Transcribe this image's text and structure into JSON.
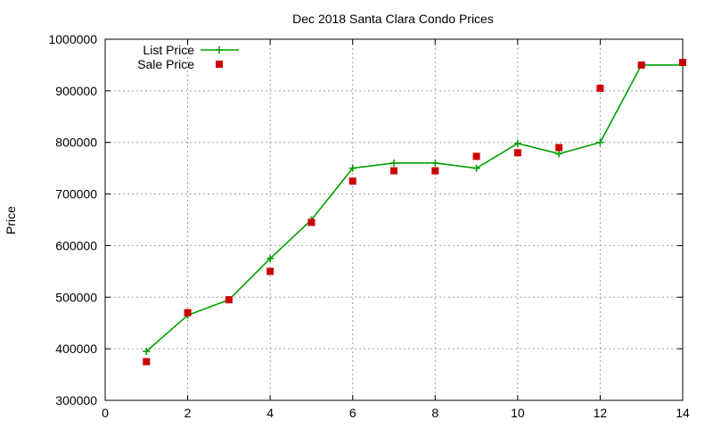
{
  "chart_data": {
    "type": "line",
    "title": "Dec 2018 Santa Clara Condo Prices",
    "xlabel": "",
    "ylabel": "Price",
    "xlim": [
      0,
      14
    ],
    "ylim": [
      300000,
      1000000
    ],
    "x_ticks": [
      0,
      2,
      4,
      6,
      8,
      10,
      12,
      14
    ],
    "y_ticks": [
      300000,
      400000,
      500000,
      600000,
      700000,
      800000,
      900000,
      1000000
    ],
    "grid": true,
    "legend_position": "top-left",
    "series": [
      {
        "name": "List Price",
        "style": "line-with-plus-markers",
        "color": "#00a000",
        "x": [
          1,
          2,
          3,
          4,
          5,
          6,
          7,
          8,
          9,
          10,
          11,
          12,
          13,
          14
        ],
        "y": [
          395000,
          465000,
          495000,
          575000,
          650000,
          750000,
          760000,
          760000,
          750000,
          798000,
          778000,
          800000,
          950000,
          950000
        ]
      },
      {
        "name": "Sale Price",
        "style": "square-markers",
        "color": "#cc0000",
        "x": [
          1,
          2,
          3,
          4,
          5,
          6,
          7,
          8,
          9,
          10,
          11,
          12,
          13,
          14
        ],
        "y": [
          375000,
          470000,
          495000,
          550000,
          645000,
          725000,
          745000,
          745000,
          773000,
          780000,
          790000,
          905000,
          950000,
          955000
        ]
      }
    ]
  }
}
